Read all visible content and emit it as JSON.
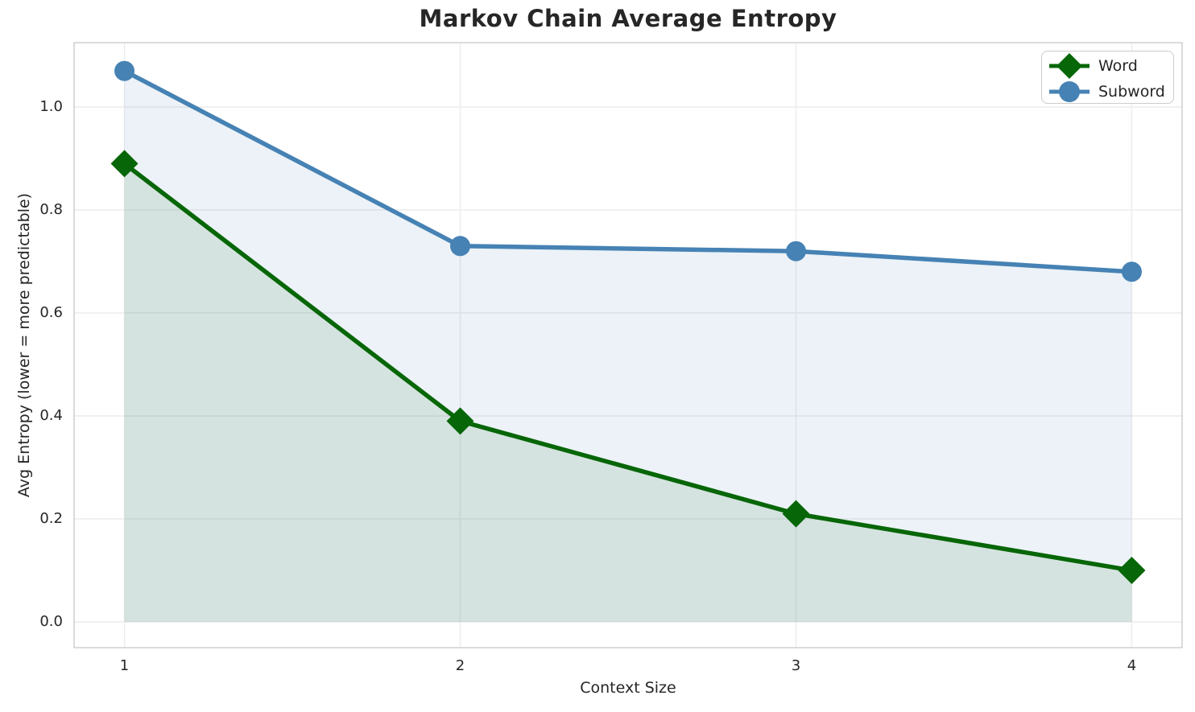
{
  "chart_data": {
    "type": "line",
    "title": "Markov Chain Average Entropy",
    "xlabel": "Context Size",
    "ylabel": "Avg Entropy (lower = more predictable)",
    "x": [
      1,
      2,
      3,
      4
    ],
    "series": [
      {
        "name": "Word",
        "values": [
          0.89,
          0.39,
          0.21,
          0.1
        ],
        "color": "#076607",
        "marker": "diamond",
        "area_fill": true
      },
      {
        "name": "Subword",
        "values": [
          1.07,
          0.73,
          0.72,
          0.68
        ],
        "color": "#4682b4",
        "marker": "circle",
        "area_fill": true
      }
    ],
    "xlim": [
      0.85,
      4.15
    ],
    "ylim": [
      -0.05,
      1.125
    ],
    "xticks": {
      "values": [
        1,
        2,
        3,
        4
      ],
      "labels": [
        "1",
        "2",
        "3",
        "4"
      ]
    },
    "yticks": {
      "values": [
        0.0,
        0.2,
        0.4,
        0.6,
        0.8,
        1.0
      ],
      "labels": [
        "0.0",
        "0.2",
        "0.4",
        "0.6",
        "0.8",
        "1.0"
      ]
    },
    "grid": true,
    "fill_opacity": 0.1,
    "fill_baseline": 0.0,
    "legend": {
      "position": "upper right",
      "entries": [
        "Word",
        "Subword"
      ]
    }
  }
}
